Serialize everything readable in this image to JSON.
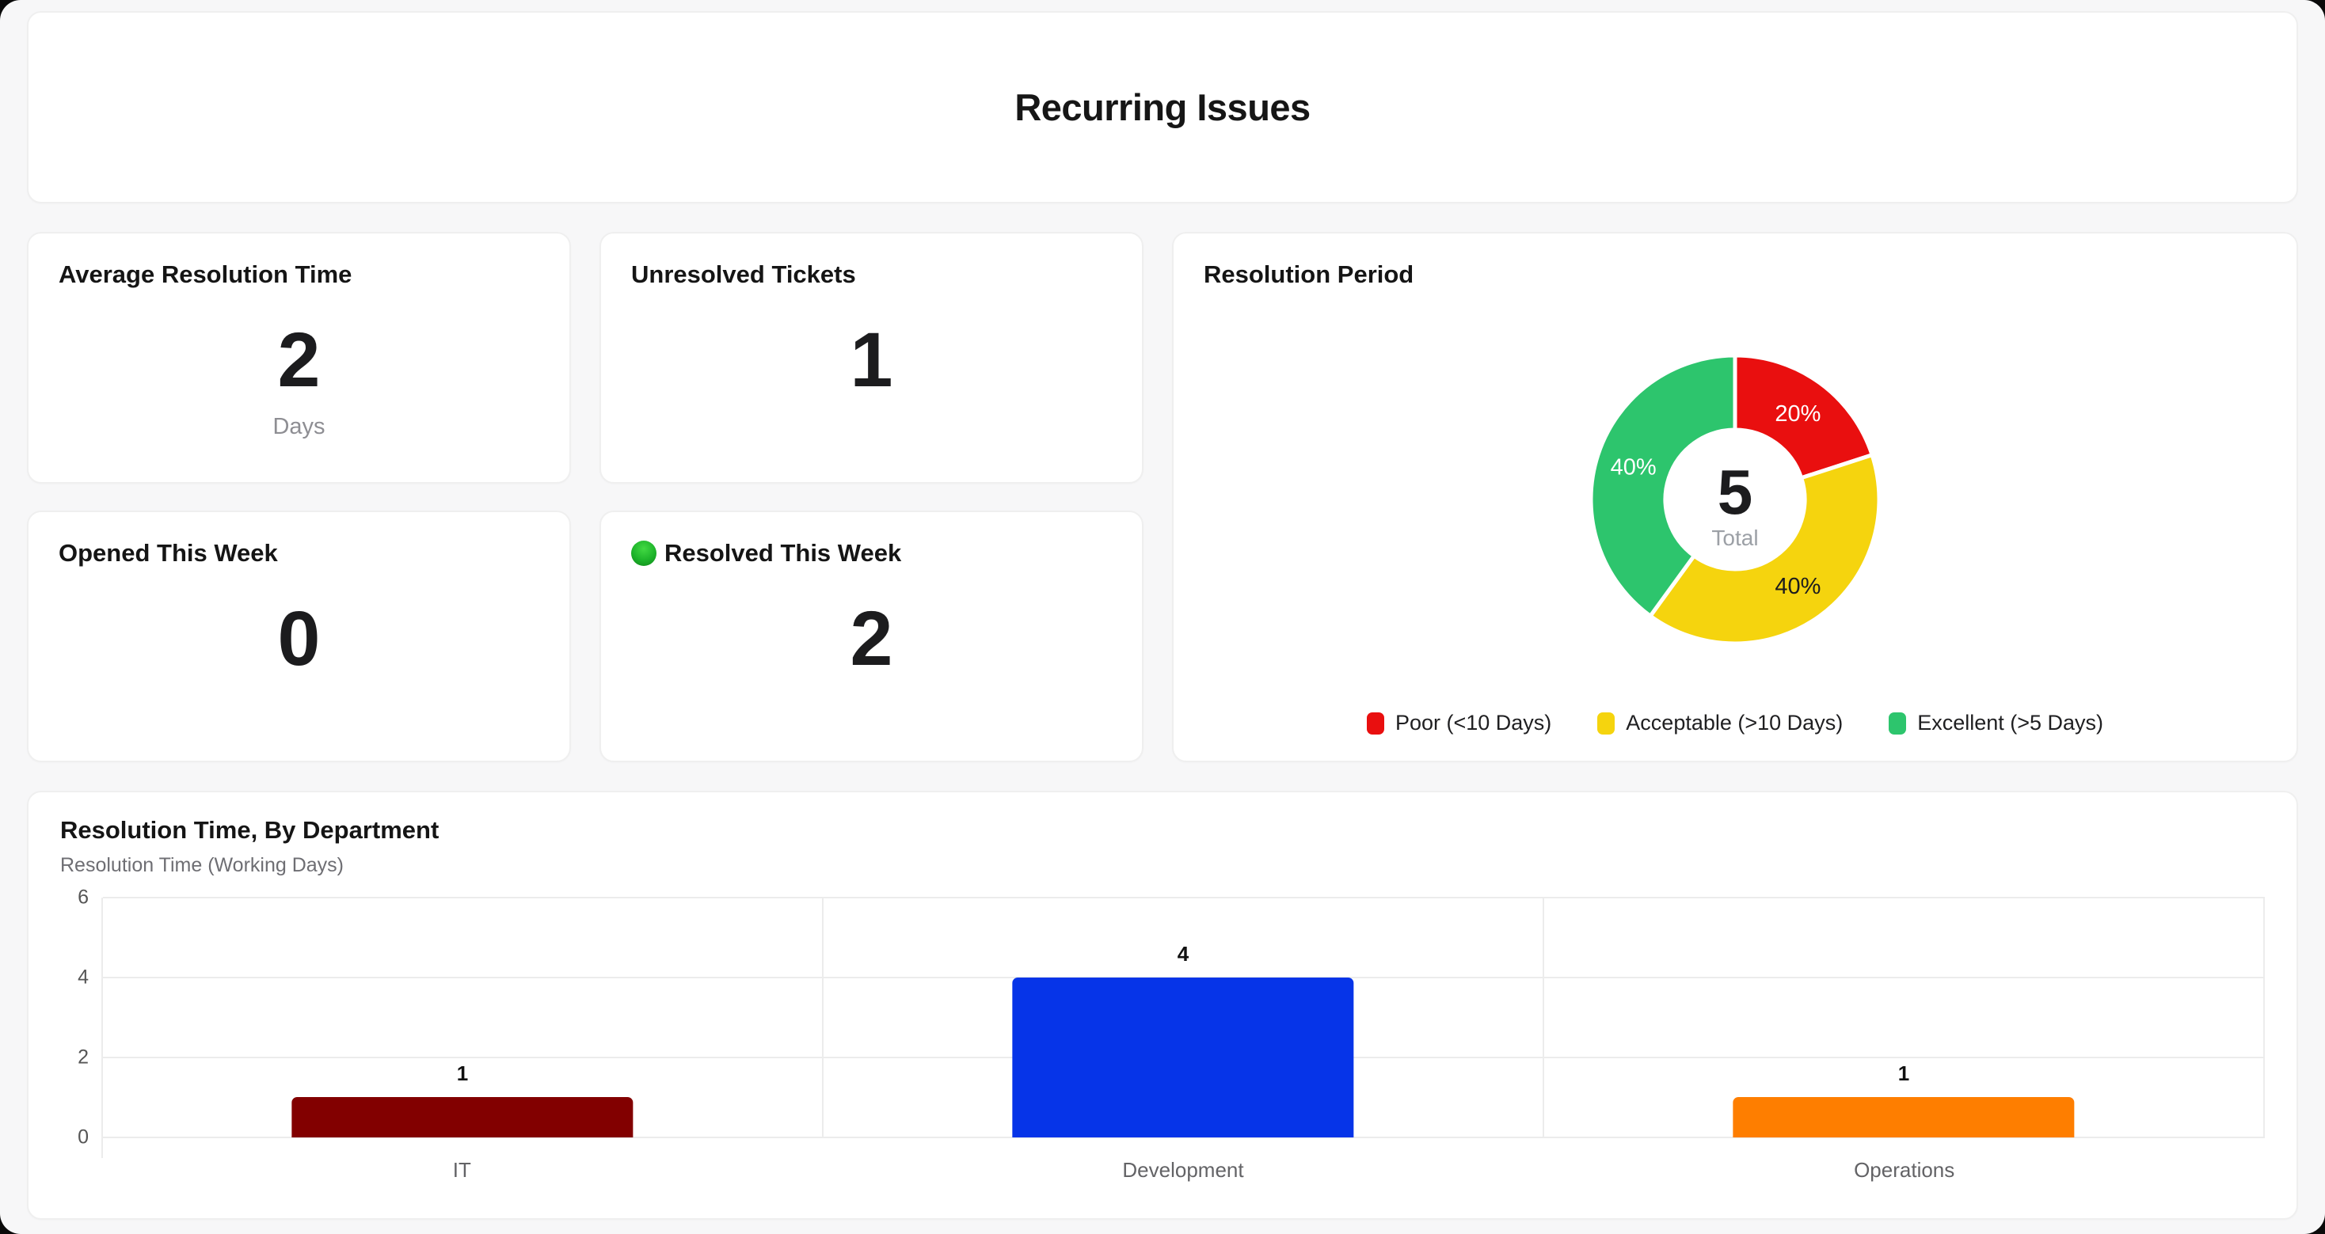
{
  "header": {
    "title": "Recurring Issues"
  },
  "kpis": [
    {
      "title": "Average Resolution Time",
      "value": "2",
      "unit": "Days"
    },
    {
      "title": "Unresolved Tickets",
      "value": "1",
      "unit": ""
    },
    {
      "title": "Opened This Week",
      "value": "0",
      "unit": ""
    },
    {
      "title": "Resolved This Week",
      "value": "2",
      "unit": "",
      "icon": "green-circle"
    }
  ],
  "chart_data": [
    {
      "type": "pie",
      "variant": "donut",
      "title": "Resolution Period",
      "center_value": "5",
      "center_label": "Total",
      "start_angle": "top",
      "direction": "clockwise",
      "legend_position": "bottom",
      "slices": [
        {
          "label": "Poor (<10 Days)",
          "percent": 20,
          "color": "#e90f0f",
          "label_color": "#ffffff"
        },
        {
          "label": "Acceptable (>10 Days)",
          "percent": 40,
          "color": "#f5d40e",
          "label_color": "#1c1c1e"
        },
        {
          "label": "Excellent (>5 Days)",
          "percent": 40,
          "color": "#2dc56d",
          "label_color": "#ffffff"
        }
      ]
    },
    {
      "type": "bar",
      "title": "Resolution Time, By Department",
      "subtitle": "Resolution Time (Working Days)",
      "categories": [
        "IT",
        "Development",
        "Operations"
      ],
      "values": [
        1,
        4,
        1
      ],
      "bar_colors": [
        "#820000",
        "#0634e8",
        "#fe7e00"
      ],
      "ylim": [
        0,
        6
      ],
      "yticks": [
        0,
        2,
        4,
        6
      ],
      "grid": true,
      "value_labels": true,
      "legend": false
    }
  ]
}
